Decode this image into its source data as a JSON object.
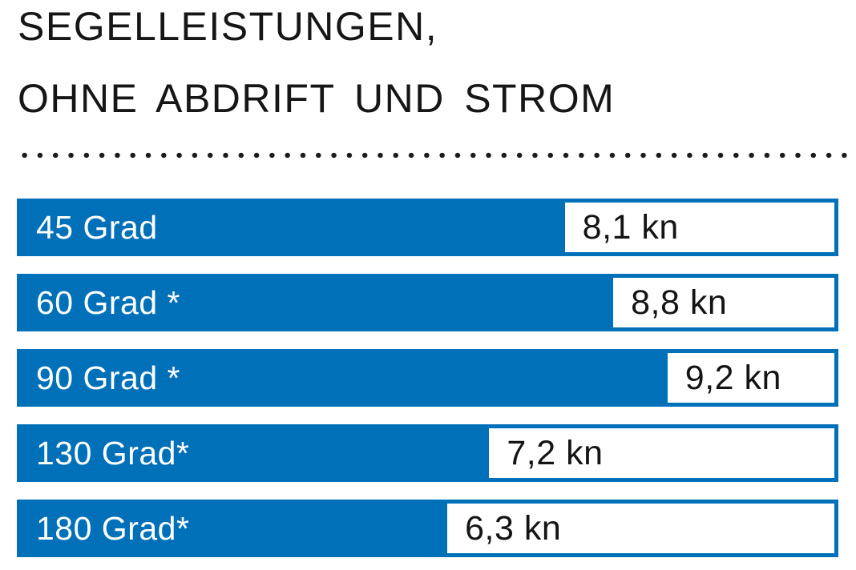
{
  "header": {
    "title_line1": "SEGELLEISTUNGEN,",
    "title_line2": "OHNE ABDRIFT UND STROM"
  },
  "chart_data": {
    "type": "bar",
    "orientation": "horizontal",
    "title": "SEGELLEISTUNGEN, OHNE ABDRIFT UND STROM",
    "categories": [
      "45 Grad",
      "60 Grad *",
      "90 Grad *",
      "130 Grad*",
      "180 Grad*"
    ],
    "values": [
      8.1,
      8.8,
      9.2,
      7.2,
      6.3
    ],
    "unit": "kn",
    "value_labels": [
      "8,1 kn",
      "8,8 kn",
      "9,2 kn",
      "7,2 kn",
      "6,3 kn"
    ],
    "bar_fill_pct": [
      66.7,
      72.6,
      79.2,
      57.5,
      52.4
    ],
    "bar_color": "#0070b9",
    "bar_label_color": "#ffffff",
    "value_box_color": "#ffffff",
    "value_text_color": "#141414",
    "divider_dot_color": "#1c1c1c",
    "grid": false,
    "legend": false,
    "xlabel": "",
    "ylabel": ""
  }
}
